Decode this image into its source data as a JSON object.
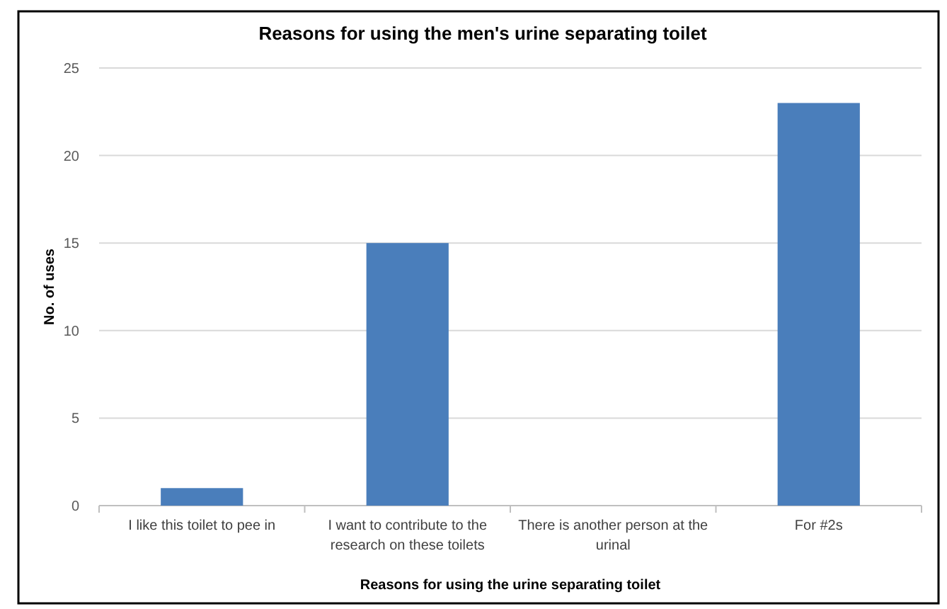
{
  "chart_data": {
    "type": "bar",
    "title": "Reasons for using the men's urine separating toilet",
    "xlabel": "Reasons for using the urine separating toilet",
    "ylabel": "No. of uses",
    "categories": [
      "I like this toilet to pee in",
      "I want to contribute to the research on these toilets",
      "There is another person at the urinal",
      "For #2s"
    ],
    "values": [
      1,
      15,
      0,
      23
    ],
    "color": "#4a7ebb",
    "ylim": [
      0,
      25
    ],
    "yticks": [
      0,
      5,
      10,
      15,
      20,
      25
    ],
    "grid": "y"
  }
}
